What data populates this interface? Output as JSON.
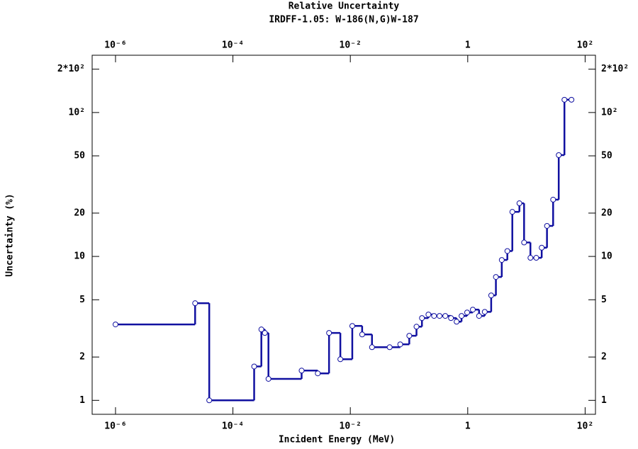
{
  "chart_data": {
    "type": "step",
    "title": "Relative Uncertainty",
    "subtitle": "IRDFF-1.05: W-186(N,G)W-187",
    "x_label": "Incident Energy (MeV)",
    "y_label": "Uncertainty (%)",
    "x_scale": "log",
    "y_scale": "log",
    "color": "#1010a0",
    "xlim": [
      4e-07,
      150
    ],
    "ylim": [
      0.8,
      250
    ],
    "xticks": [
      {
        "value": 1e-06,
        "label": "10⁻⁶"
      },
      {
        "value": 0.0001,
        "label": "10⁻⁴"
      },
      {
        "value": 0.01,
        "label": "10⁻²"
      },
      1,
      {
        "value": 100,
        "label": "10²"
      }
    ],
    "yticks": [
      1,
      2,
      5,
      10,
      20,
      50,
      {
        "value": 100,
        "label": "10²"
      },
      {
        "value": 200,
        "label": "2*10²"
      }
    ],
    "x": [
      1e-06,
      2.27e-05,
      3.95e-05,
      0.00023,
      0.000305,
      0.00035,
      0.000403,
      0.00148,
      0.00279,
      0.00434,
      0.00676,
      0.0108,
      0.0159,
      0.0234,
      0.0468,
      0.0708,
      0.101,
      0.134,
      0.166,
      0.214,
      0.267,
      0.331,
      0.415,
      0.518,
      0.646,
      0.784,
      0.977,
      1.22,
      1.56,
      1.95,
      2.51,
      3.02,
      3.8,
      4.73,
      5.75,
      7.59,
      9.12,
      11.7,
      14.7,
      18.2,
      22.4,
      28.5,
      35.5,
      44.4,
      58.5
    ],
    "values": [
      3.37,
      4.73,
      1,
      1.72,
      3.11,
      2.94,
      1.41,
      1.61,
      1.54,
      2.94,
      1.93,
      3.29,
      2.87,
      2.34,
      2.34,
      2.45,
      2.81,
      3.25,
      3.73,
      3.95,
      3.86,
      3.86,
      3.86,
      3.73,
      3.52,
      3.86,
      4.08,
      4.27,
      3.86,
      4.12,
      5.36,
      7.2,
      9.45,
      10.9,
      20.4,
      23.4,
      12.5,
      9.78,
      9.78,
      11.5,
      16.3,
      24.8,
      50.6,
      122.7,
      122.7
    ]
  }
}
